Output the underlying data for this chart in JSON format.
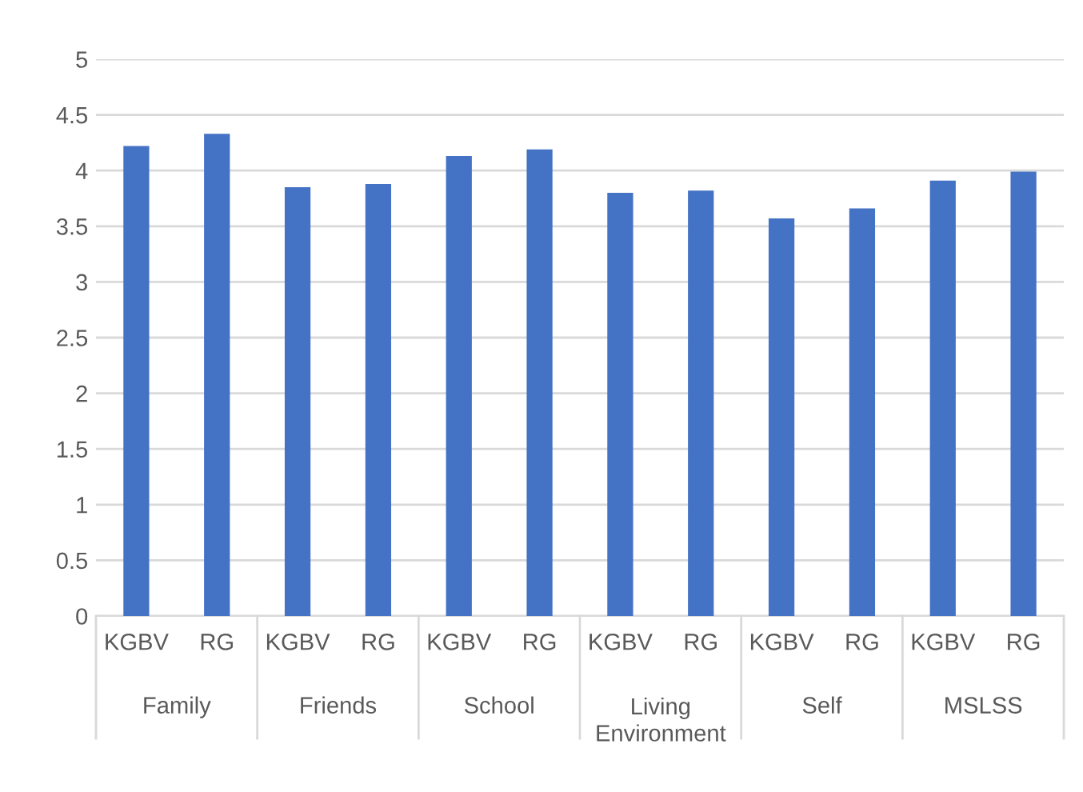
{
  "chart_data": {
    "type": "bar",
    "categories": [
      "Family",
      "Friends",
      "School",
      "Living Environment",
      "Self",
      "MSLSS"
    ],
    "series": [
      {
        "name": "KGBV",
        "color": "#4472c4",
        "values": [
          4.22,
          3.85,
          4.13,
          3.8,
          3.57,
          3.91
        ]
      },
      {
        "name": "RG",
        "color": "#4472c4",
        "values": [
          4.33,
          3.88,
          4.19,
          3.82,
          3.66,
          3.99
        ]
      }
    ],
    "ylim": [
      0,
      5
    ],
    "yticks": [
      0,
      0.5,
      1,
      1.5,
      2,
      2.5,
      3,
      3.5,
      4,
      4.5,
      5
    ],
    "grid": "y",
    "legend": false
  }
}
